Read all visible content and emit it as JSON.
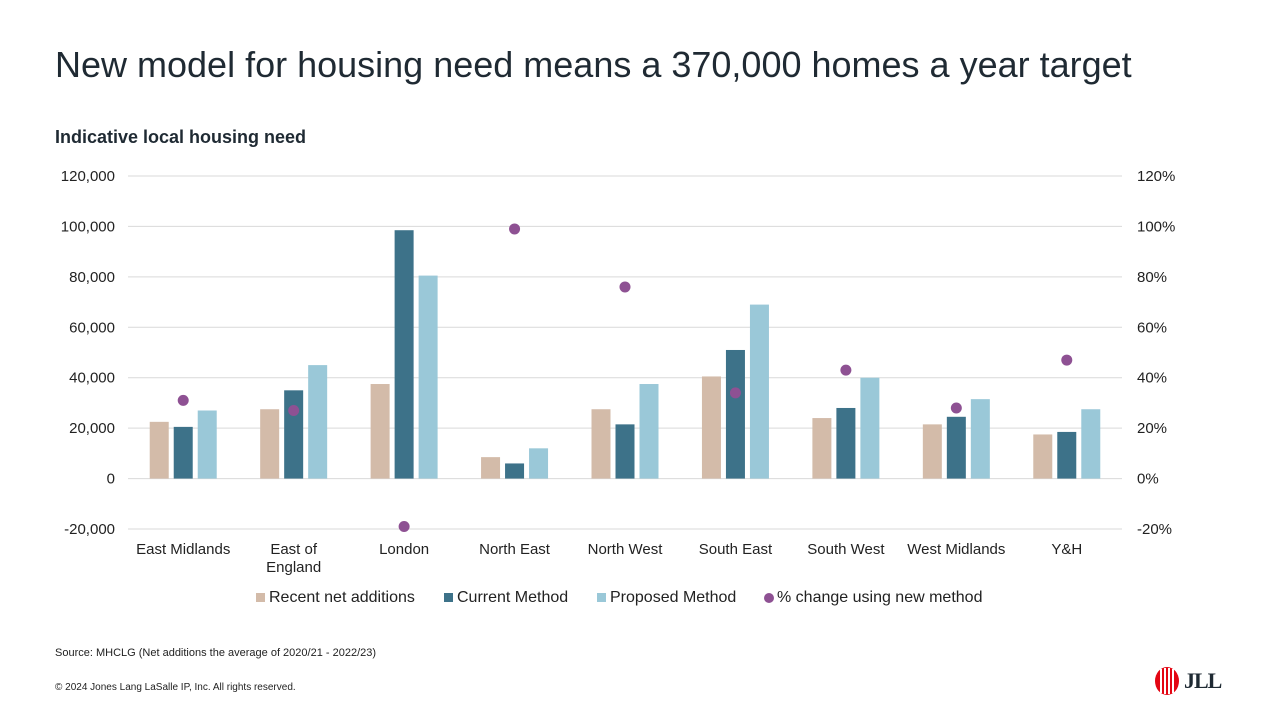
{
  "slide": {
    "title": "New model for housing need means a 370,000 homes a year target",
    "subtitle": "Indicative local housing need",
    "source": "Source: MHCLG (Net additions the average of 2020/21 - 2022/23)",
    "copyright": "© 2024 Jones Lang LaSalle IP,  Inc.  All rights reserved.",
    "logo_text": "JLL"
  },
  "colors": {
    "recent": "#d3bba9",
    "current": "#3d7289",
    "proposed": "#9ac8d8",
    "pct": "#8e5193",
    "grid": "#d9d9d9",
    "logo_red": "#e30613"
  },
  "chart_data": {
    "type": "bar",
    "categories": [
      "East Midlands",
      "East of England",
      "London",
      "North East",
      "North West",
      "South East",
      "South West",
      "West Midlands",
      "Y&H"
    ],
    "category_lines": [
      [
        "East Midlands"
      ],
      [
        "East of",
        "England"
      ],
      [
        "London"
      ],
      [
        "North East"
      ],
      [
        "North West"
      ],
      [
        "South East"
      ],
      [
        "South West"
      ],
      [
        "West Midlands"
      ],
      [
        "Y&H"
      ]
    ],
    "series": [
      {
        "name": "Recent net additions",
        "values": [
          22500,
          27500,
          37500,
          8500,
          27500,
          40500,
          24000,
          21500,
          17500
        ]
      },
      {
        "name": "Current Method",
        "values": [
          20500,
          35000,
          98500,
          6000,
          21500,
          51000,
          28000,
          24500,
          18500
        ]
      },
      {
        "name": "Proposed Method",
        "values": [
          27000,
          45000,
          80500,
          12000,
          37500,
          69000,
          40000,
          31500,
          27500
        ]
      }
    ],
    "secondary_series": {
      "name": "% change using new method",
      "type": "scatter",
      "values": [
        31,
        27,
        -19,
        99,
        76,
        34,
        43,
        28,
        47
      ]
    },
    "ylim": [
      -20000,
      120000
    ],
    "yticks": [
      -20000,
      0,
      20000,
      40000,
      60000,
      80000,
      100000,
      120000
    ],
    "ytick_labels": [
      "-20,000",
      "0",
      "20,000",
      "40,000",
      "60,000",
      "80,000",
      "100,000",
      "120,000"
    ],
    "y2lim": [
      -20,
      120
    ],
    "y2ticks": [
      -20,
      0,
      20,
      40,
      60,
      80,
      100,
      120
    ],
    "y2tick_labels": [
      "-20%",
      "0%",
      "20%",
      "40%",
      "60%",
      "80%",
      "100%",
      "120%"
    ],
    "legend_position": "bottom",
    "grid": true
  }
}
